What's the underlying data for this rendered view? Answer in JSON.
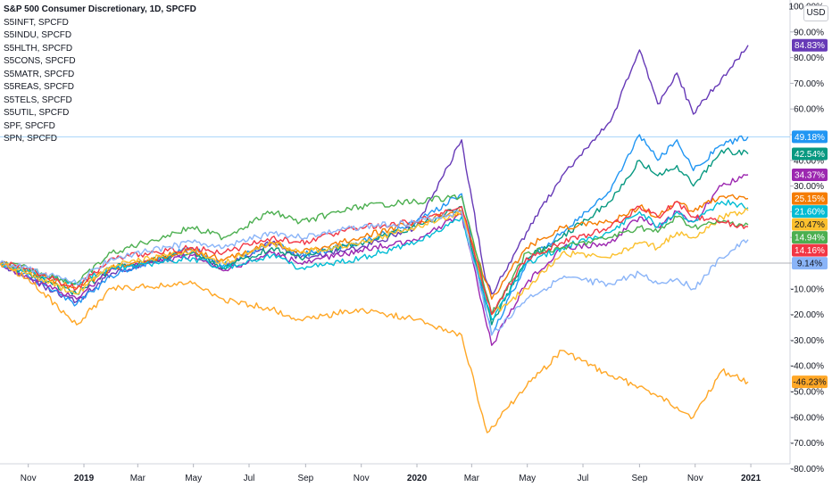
{
  "currency_button": "USD",
  "legend": [
    "S&P 500 Consumer Discretionary, 1D, SPCFD",
    "S5INFT, SPCFD",
    "S5INDU, SPCFD",
    "S5HLTH, SPCFD",
    "S5CONS, SPCFD",
    "S5MATR, SPCFD",
    "S5REAS, SPCFD",
    "S5TELS, SPCFD",
    "S5UTIL, SPCFD",
    "SPF, SPCFD",
    "SPN, SPCFD"
  ],
  "chart_data": {
    "type": "line",
    "title": "S&P 500 Consumer Discretionary, 1D, SPCFD",
    "y_unit": "%",
    "ylim": [
      -80,
      100
    ],
    "y_ticks": [
      "100.00%",
      "90.00%",
      "80.00%",
      "70.00%",
      "60.00%",
      "50.00%",
      "40.00%",
      "30.00%",
      "20.00%",
      "10.00%",
      "0.00%",
      "-10.00%",
      "-20.00%",
      "-30.00%",
      "-40.00%",
      "-50.00%",
      "-60.00%",
      "-70.00%",
      "-80.00%"
    ],
    "x_ticks": [
      "Nov",
      "2019",
      "Mar",
      "May",
      "Jul",
      "Sep",
      "Nov",
      "2020",
      "Mar",
      "May",
      "Jul",
      "Sep",
      "Nov",
      "2021"
    ],
    "x_tick_dates": [
      "2018-11-01",
      "2019-01-01",
      "2019-03-01",
      "2019-05-01",
      "2019-07-01",
      "2019-09-01",
      "2019-11-01",
      "2020-01-01",
      "2020-03-01",
      "2020-05-01",
      "2020-07-01",
      "2020-09-01",
      "2020-11-01",
      "2021-01-01"
    ],
    "x_range": [
      "2018-10-01",
      "2020-12-29"
    ],
    "last_value_labels": [
      "84.83%",
      "49.18%",
      "42.54%",
      "34.37%",
      "25.15%",
      "21.60%",
      "20.47%",
      "14.94%",
      "14.16%",
      "9.14%",
      "-46.23%"
    ],
    "series": [
      {
        "color": "#673ab7",
        "last": 84.83,
        "points": [
          [
            "2018-10-01",
            0
          ],
          [
            "2018-11-01",
            -6
          ],
          [
            "2018-12-24",
            -15
          ],
          [
            "2019-01-31",
            -4
          ],
          [
            "2019-04-30",
            5
          ],
          [
            "2019-06-03",
            -2
          ],
          [
            "2019-07-26",
            8
          ],
          [
            "2019-08-26",
            2
          ],
          [
            "2019-10-31",
            6
          ],
          [
            "2019-12-31",
            14
          ],
          [
            "2020-02-19",
            48
          ],
          [
            "2020-03-16",
            -6
          ],
          [
            "2020-03-23",
            -12
          ],
          [
            "2020-04-30",
            12
          ],
          [
            "2020-06-08",
            34
          ],
          [
            "2020-07-31",
            55
          ],
          [
            "2020-09-01",
            83
          ],
          [
            "2020-09-21",
            62
          ],
          [
            "2020-10-12",
            74
          ],
          [
            "2020-10-30",
            58
          ],
          [
            "2020-11-30",
            72
          ],
          [
            "2020-12-29",
            84.83
          ]
        ]
      },
      {
        "color": "#2196f3",
        "last": 49.18,
        "points": [
          [
            "2018-10-01",
            0
          ],
          [
            "2018-11-01",
            -5
          ],
          [
            "2018-12-24",
            -16
          ],
          [
            "2019-01-31",
            -5
          ],
          [
            "2019-04-30",
            6
          ],
          [
            "2019-06-03",
            -1
          ],
          [
            "2019-07-26",
            8
          ],
          [
            "2019-08-26",
            3
          ],
          [
            "2019-10-31",
            8
          ],
          [
            "2019-12-31",
            16
          ],
          [
            "2020-02-19",
            27
          ],
          [
            "2020-03-23",
            -28
          ],
          [
            "2020-04-30",
            0
          ],
          [
            "2020-06-08",
            12
          ],
          [
            "2020-07-31",
            28
          ],
          [
            "2020-09-01",
            50
          ],
          [
            "2020-09-21",
            40
          ],
          [
            "2020-10-12",
            48
          ],
          [
            "2020-10-30",
            36
          ],
          [
            "2020-11-30",
            46
          ],
          [
            "2020-12-29",
            49.18
          ]
        ]
      },
      {
        "color": "#089981",
        "last": 42.54,
        "points": [
          [
            "2018-10-01",
            0
          ],
          [
            "2018-11-01",
            -4
          ],
          [
            "2018-12-24",
            -12
          ],
          [
            "2019-01-31",
            -2
          ],
          [
            "2019-04-30",
            4
          ],
          [
            "2019-06-03",
            -2
          ],
          [
            "2019-07-26",
            6
          ],
          [
            "2019-08-26",
            2
          ],
          [
            "2019-10-31",
            8
          ],
          [
            "2019-12-31",
            14
          ],
          [
            "2020-02-19",
            22
          ],
          [
            "2020-03-23",
            -24
          ],
          [
            "2020-04-30",
            2
          ],
          [
            "2020-06-08",
            10
          ],
          [
            "2020-07-31",
            24
          ],
          [
            "2020-09-01",
            40
          ],
          [
            "2020-09-21",
            34
          ],
          [
            "2020-10-12",
            38
          ],
          [
            "2020-10-30",
            30
          ],
          [
            "2020-11-30",
            44
          ],
          [
            "2020-12-29",
            42.54
          ]
        ]
      },
      {
        "color": "#9c27b0",
        "last": 34.37,
        "points": [
          [
            "2018-10-01",
            0
          ],
          [
            "2018-11-01",
            -6
          ],
          [
            "2018-12-24",
            -14
          ],
          [
            "2019-01-31",
            -2
          ],
          [
            "2019-04-30",
            3
          ],
          [
            "2019-06-03",
            -3
          ],
          [
            "2019-07-26",
            4
          ],
          [
            "2019-08-26",
            0
          ],
          [
            "2019-10-31",
            5
          ],
          [
            "2019-12-31",
            9
          ],
          [
            "2020-02-19",
            19
          ],
          [
            "2020-03-23",
            -32
          ],
          [
            "2020-04-30",
            -8
          ],
          [
            "2020-06-08",
            6
          ],
          [
            "2020-07-31",
            8
          ],
          [
            "2020-09-01",
            18
          ],
          [
            "2020-09-21",
            14
          ],
          [
            "2020-10-12",
            20
          ],
          [
            "2020-10-30",
            16
          ],
          [
            "2020-11-30",
            30
          ],
          [
            "2020-12-29",
            34.37
          ]
        ]
      },
      {
        "color": "#f57c00",
        "last": 25.15,
        "points": [
          [
            "2018-10-01",
            0
          ],
          [
            "2018-11-01",
            -3
          ],
          [
            "2018-12-24",
            -10
          ],
          [
            "2019-01-31",
            -2
          ],
          [
            "2019-04-30",
            5
          ],
          [
            "2019-06-03",
            1
          ],
          [
            "2019-07-26",
            8
          ],
          [
            "2019-08-26",
            4
          ],
          [
            "2019-10-31",
            10
          ],
          [
            "2019-12-31",
            16
          ],
          [
            "2020-02-19",
            20
          ],
          [
            "2020-03-23",
            -14
          ],
          [
            "2020-04-30",
            6
          ],
          [
            "2020-06-08",
            14
          ],
          [
            "2020-07-31",
            16
          ],
          [
            "2020-09-01",
            22
          ],
          [
            "2020-09-21",
            18
          ],
          [
            "2020-10-12",
            24
          ],
          [
            "2020-10-30",
            20
          ],
          [
            "2020-11-30",
            26
          ],
          [
            "2020-12-29",
            25.15
          ]
        ]
      },
      {
        "color": "#00bcd4",
        "last": 21.6,
        "points": [
          [
            "2018-10-01",
            0
          ],
          [
            "2018-11-01",
            -3
          ],
          [
            "2018-12-24",
            -8
          ],
          [
            "2019-01-31",
            -2
          ],
          [
            "2019-04-30",
            2
          ],
          [
            "2019-06-03",
            -2
          ],
          [
            "2019-07-26",
            3
          ],
          [
            "2019-08-26",
            -2
          ],
          [
            "2019-10-31",
            2
          ],
          [
            "2019-12-31",
            8
          ],
          [
            "2020-02-19",
            18
          ],
          [
            "2020-03-23",
            -22
          ],
          [
            "2020-04-30",
            0
          ],
          [
            "2020-06-08",
            6
          ],
          [
            "2020-07-31",
            12
          ],
          [
            "2020-09-01",
            20
          ],
          [
            "2020-09-21",
            14
          ],
          [
            "2020-10-12",
            20
          ],
          [
            "2020-10-30",
            16
          ],
          [
            "2020-11-30",
            24
          ],
          [
            "2020-12-29",
            21.6
          ]
        ]
      },
      {
        "color": "#fbc02d",
        "last": 20.47,
        "points": [
          [
            "2018-10-01",
            0
          ],
          [
            "2018-11-01",
            -4
          ],
          [
            "2018-12-24",
            -12
          ],
          [
            "2019-01-31",
            -1
          ],
          [
            "2019-04-30",
            5
          ],
          [
            "2019-06-03",
            0
          ],
          [
            "2019-07-26",
            8
          ],
          [
            "2019-08-26",
            4
          ],
          [
            "2019-10-31",
            8
          ],
          [
            "2019-12-31",
            14
          ],
          [
            "2020-02-19",
            20
          ],
          [
            "2020-03-23",
            -20
          ],
          [
            "2020-04-30",
            -10
          ],
          [
            "2020-06-08",
            4
          ],
          [
            "2020-07-31",
            2
          ],
          [
            "2020-09-01",
            8
          ],
          [
            "2020-09-21",
            6
          ],
          [
            "2020-10-12",
            12
          ],
          [
            "2020-10-30",
            10
          ],
          [
            "2020-11-30",
            18
          ],
          [
            "2020-12-29",
            20.47
          ]
        ]
      },
      {
        "color": "#4caf50",
        "last": 14.94,
        "points": [
          [
            "2018-10-01",
            0
          ],
          [
            "2018-11-01",
            -2
          ],
          [
            "2018-12-24",
            -8
          ],
          [
            "2019-01-31",
            4
          ],
          [
            "2019-04-30",
            14
          ],
          [
            "2019-06-03",
            10
          ],
          [
            "2019-07-26",
            20
          ],
          [
            "2019-08-26",
            16
          ],
          [
            "2019-10-31",
            22
          ],
          [
            "2019-12-31",
            24
          ],
          [
            "2020-02-19",
            26
          ],
          [
            "2020-03-23",
            -20
          ],
          [
            "2020-04-30",
            4
          ],
          [
            "2020-06-08",
            6
          ],
          [
            "2020-07-31",
            10
          ],
          [
            "2020-09-01",
            14
          ],
          [
            "2020-09-21",
            12
          ],
          [
            "2020-10-12",
            18
          ],
          [
            "2020-10-30",
            14
          ],
          [
            "2020-11-30",
            16
          ],
          [
            "2020-12-29",
            14.94
          ]
        ]
      },
      {
        "color": "#f23645",
        "last": 14.16,
        "points": [
          [
            "2018-10-01",
            0
          ],
          [
            "2018-11-01",
            -2
          ],
          [
            "2018-12-24",
            -10
          ],
          [
            "2019-01-31",
            2
          ],
          [
            "2019-04-30",
            6
          ],
          [
            "2019-06-03",
            4
          ],
          [
            "2019-07-26",
            10
          ],
          [
            "2019-08-26",
            8
          ],
          [
            "2019-10-31",
            14
          ],
          [
            "2019-12-31",
            16
          ],
          [
            "2020-02-19",
            22
          ],
          [
            "2020-03-23",
            -20
          ],
          [
            "2020-04-30",
            2
          ],
          [
            "2020-06-08",
            8
          ],
          [
            "2020-07-31",
            14
          ],
          [
            "2020-09-01",
            22
          ],
          [
            "2020-09-21",
            18
          ],
          [
            "2020-10-12",
            24
          ],
          [
            "2020-10-30",
            18
          ],
          [
            "2020-11-30",
            16
          ],
          [
            "2020-12-29",
            14.16
          ]
        ]
      },
      {
        "color": "#8ab4f8",
        "last": 9.14,
        "points": [
          [
            "2018-10-01",
            0
          ],
          [
            "2018-11-01",
            -2
          ],
          [
            "2018-12-24",
            -8
          ],
          [
            "2019-01-31",
            2
          ],
          [
            "2019-04-30",
            8
          ],
          [
            "2019-06-03",
            6
          ],
          [
            "2019-07-26",
            12
          ],
          [
            "2019-08-26",
            10
          ],
          [
            "2019-10-31",
            14
          ],
          [
            "2019-12-31",
            16
          ],
          [
            "2020-02-19",
            20
          ],
          [
            "2020-03-23",
            -28
          ],
          [
            "2020-04-30",
            -14
          ],
          [
            "2020-06-08",
            -6
          ],
          [
            "2020-07-31",
            -8
          ],
          [
            "2020-09-01",
            -4
          ],
          [
            "2020-09-21",
            -8
          ],
          [
            "2020-10-12",
            -6
          ],
          [
            "2020-10-30",
            -10
          ],
          [
            "2020-11-30",
            2
          ],
          [
            "2020-12-29",
            9.14
          ]
        ]
      },
      {
        "color": "#ffa726",
        "last": -46.23,
        "points": [
          [
            "2018-10-01",
            0
          ],
          [
            "2018-11-01",
            -6
          ],
          [
            "2018-12-24",
            -24
          ],
          [
            "2019-01-31",
            -10
          ],
          [
            "2019-04-30",
            -8
          ],
          [
            "2019-06-03",
            -14
          ],
          [
            "2019-07-26",
            -18
          ],
          [
            "2019-08-26",
            -22
          ],
          [
            "2019-10-31",
            -18
          ],
          [
            "2019-12-31",
            -22
          ],
          [
            "2020-02-19",
            -28
          ],
          [
            "2020-03-18",
            -66
          ],
          [
            "2020-04-30",
            -48
          ],
          [
            "2020-06-08",
            -34
          ],
          [
            "2020-07-31",
            -44
          ],
          [
            "2020-09-01",
            -48
          ],
          [
            "2020-09-21",
            -52
          ],
          [
            "2020-10-12",
            -56
          ],
          [
            "2020-10-30",
            -60
          ],
          [
            "2020-11-30",
            -42
          ],
          [
            "2020-12-29",
            -46.23
          ]
        ]
      }
    ]
  }
}
